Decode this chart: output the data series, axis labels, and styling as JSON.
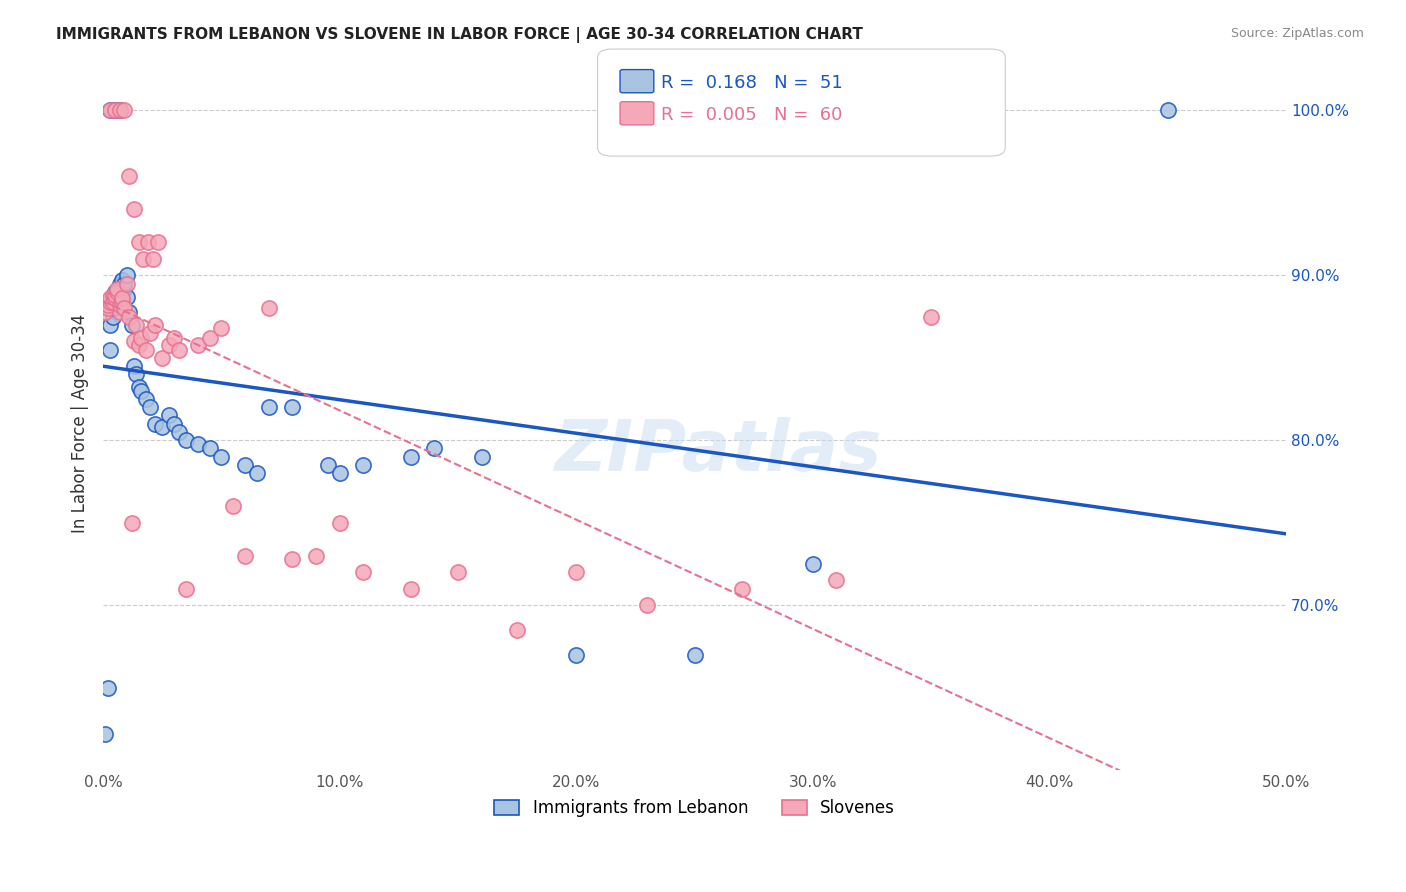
{
  "title": "IMMIGRANTS FROM LEBANON VS SLOVENE IN LABOR FORCE | AGE 30-34 CORRELATION CHART",
  "source": "Source: ZipAtlas.com",
  "ylabel": "In Labor Force | Age 30-34",
  "xlim": [
    0.0,
    0.5
  ],
  "ylim": [
    0.6,
    1.02
  ],
  "xticks": [
    0.0,
    0.1,
    0.2,
    0.3,
    0.4,
    0.5
  ],
  "xticklabels": [
    "0.0%",
    "10.0%",
    "20.0%",
    "30.0%",
    "40.0%",
    "50.0%"
  ],
  "yticks": [
    0.7,
    0.8,
    0.9,
    1.0
  ],
  "yticklabels": [
    "70.0%",
    "80.0%",
    "90.0%",
    "100.0%"
  ],
  "blue_R": 0.168,
  "blue_N": 51,
  "pink_R": 0.005,
  "pink_N": 60,
  "blue_color": "#a8c4e0",
  "pink_color": "#f4a8b8",
  "blue_line_color": "#1a56c4",
  "pink_line_color": "#e87090",
  "legend_label_blue": "Immigrants from Lebanon",
  "legend_label_pink": "Slovenes",
  "blue_x": [
    0.001,
    0.002,
    0.003,
    0.003,
    0.004,
    0.004,
    0.005,
    0.005,
    0.006,
    0.007,
    0.007,
    0.008,
    0.008,
    0.009,
    0.009,
    0.01,
    0.01,
    0.011,
    0.012,
    0.013,
    0.014,
    0.015,
    0.016,
    0.018,
    0.02,
    0.022,
    0.025,
    0.028,
    0.03,
    0.032,
    0.035,
    0.04,
    0.045,
    0.05,
    0.06,
    0.065,
    0.07,
    0.08,
    0.095,
    0.1,
    0.11,
    0.13,
    0.14,
    0.16,
    0.2,
    0.25,
    0.3,
    0.003,
    0.005,
    0.007,
    0.45
  ],
  "blue_y": [
    0.622,
    0.65,
    0.855,
    0.87,
    0.875,
    0.88,
    0.885,
    0.89,
    0.888,
    0.892,
    0.895,
    0.89,
    0.897,
    0.892,
    0.895,
    0.9,
    0.887,
    0.878,
    0.87,
    0.845,
    0.84,
    0.832,
    0.83,
    0.825,
    0.82,
    0.81,
    0.808,
    0.815,
    0.81,
    0.805,
    0.8,
    0.798,
    0.795,
    0.79,
    0.785,
    0.78,
    0.82,
    0.82,
    0.785,
    0.78,
    0.785,
    0.79,
    0.795,
    0.79,
    0.67,
    0.67,
    0.725,
    1.0,
    1.0,
    1.0,
    1.0
  ],
  "pink_x": [
    0.001,
    0.002,
    0.002,
    0.003,
    0.003,
    0.004,
    0.004,
    0.005,
    0.005,
    0.006,
    0.006,
    0.007,
    0.007,
    0.008,
    0.008,
    0.009,
    0.01,
    0.011,
    0.012,
    0.013,
    0.014,
    0.015,
    0.016,
    0.018,
    0.02,
    0.022,
    0.025,
    0.028,
    0.03,
    0.032,
    0.035,
    0.04,
    0.045,
    0.05,
    0.055,
    0.06,
    0.07,
    0.08,
    0.09,
    0.1,
    0.11,
    0.13,
    0.15,
    0.175,
    0.2,
    0.23,
    0.27,
    0.31,
    0.35,
    0.003,
    0.005,
    0.007,
    0.009,
    0.011,
    0.013,
    0.015,
    0.017,
    0.019,
    0.021,
    0.023
  ],
  "pink_y": [
    0.878,
    0.88,
    0.882,
    0.884,
    0.886,
    0.888,
    0.884,
    0.886,
    0.888,
    0.89,
    0.892,
    0.878,
    0.882,
    0.884,
    0.886,
    0.88,
    0.895,
    0.875,
    0.75,
    0.86,
    0.87,
    0.858,
    0.862,
    0.855,
    0.865,
    0.87,
    0.85,
    0.858,
    0.862,
    0.855,
    0.71,
    0.858,
    0.862,
    0.868,
    0.76,
    0.73,
    0.88,
    0.728,
    0.73,
    0.75,
    0.72,
    0.71,
    0.72,
    0.685,
    0.72,
    0.7,
    0.71,
    0.715,
    0.875,
    1.0,
    1.0,
    1.0,
    1.0,
    0.96,
    0.94,
    0.92,
    0.91,
    0.92,
    0.91,
    0.92
  ]
}
